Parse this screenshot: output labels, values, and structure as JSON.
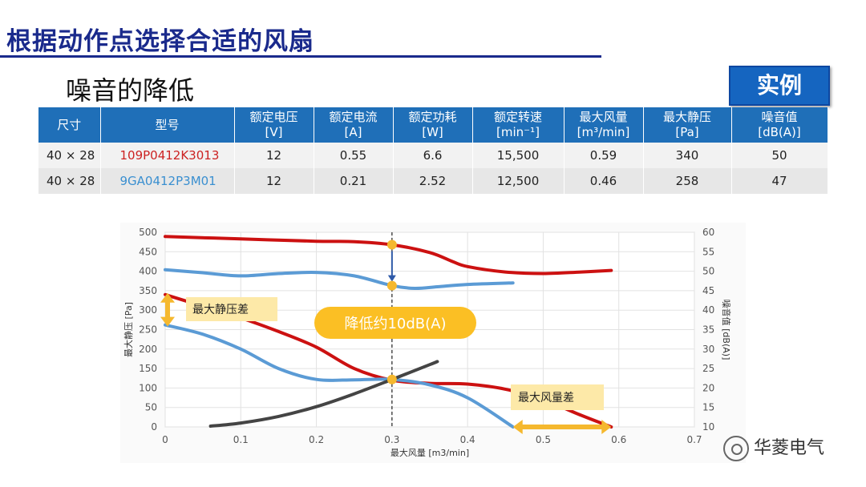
{
  "slide": {
    "title": "根据动作点选择合适的风扇",
    "subtitle": "噪音的降低",
    "badge": "实例"
  },
  "table": {
    "headers": [
      {
        "name": "尺寸",
        "unit": ""
      },
      {
        "name": "型号",
        "unit": ""
      },
      {
        "name": "额定电压",
        "unit": "[V]"
      },
      {
        "name": "额定电流",
        "unit": "[A]"
      },
      {
        "name": "额定功耗",
        "unit": "[W]"
      },
      {
        "name": "额定转速",
        "unit": "[min⁻¹]"
      },
      {
        "name": "最大风量",
        "unit": "[m³/min]"
      },
      {
        "name": "最大静压",
        "unit": "[Pa]"
      },
      {
        "name": "噪音值",
        "unit": "[dB(A)]"
      }
    ],
    "rows": [
      {
        "size": "40 × 28",
        "model": "109P0412K3013",
        "voltage": "12",
        "current": "0.55",
        "power": "6.6",
        "speed": "15,500",
        "airflow": "0.59",
        "pressure": "340",
        "noise": "50",
        "model_color": "#cc2222"
      },
      {
        "size": "40 × 28",
        "model": "9GA0412P3M01",
        "voltage": "12",
        "current": "0.21",
        "power": "2.52",
        "speed": "12,500",
        "airflow": "0.46",
        "pressure": "258",
        "noise": "47",
        "model_color": "#3a8fd0"
      }
    ]
  },
  "chart_data": {
    "type": "line",
    "xlabel": "最大风量 [m3/min]",
    "ylabel_left": "最大静压 [Pa]",
    "ylabel_right": "噪音值 [dB(A)]",
    "xlim": [
      0,
      0.7
    ],
    "ylim_left": [
      0,
      500
    ],
    "ylim_right": [
      10,
      60
    ],
    "x_ticks": [
      "0",
      "0.1",
      "0.2",
      "0.3",
      "0.4",
      "0.5",
      "0.6",
      "0.7"
    ],
    "y_ticks_left": [
      "0",
      "50",
      "100",
      "150",
      "200",
      "250",
      "300",
      "350",
      "400",
      "450",
      "500"
    ],
    "y_ticks_right": [
      "10",
      "15",
      "20",
      "25",
      "30",
      "35",
      "40",
      "45",
      "50",
      "55",
      "60"
    ],
    "grid": true,
    "series": [
      {
        "role": "pressure-old",
        "axis": "left",
        "color": "#cc1111",
        "points": [
          [
            0,
            340
          ],
          [
            0.05,
            310
          ],
          [
            0.1,
            280
          ],
          [
            0.15,
            245
          ],
          [
            0.2,
            205
          ],
          [
            0.25,
            150
          ],
          [
            0.3,
            120
          ],
          [
            0.35,
            112
          ],
          [
            0.4,
            110
          ],
          [
            0.45,
            97
          ],
          [
            0.5,
            70
          ],
          [
            0.55,
            30
          ],
          [
            0.59,
            0
          ]
        ]
      },
      {
        "role": "pressure-new",
        "axis": "left",
        "color": "#5b9bd5",
        "points": [
          [
            0,
            262
          ],
          [
            0.05,
            238
          ],
          [
            0.1,
            200
          ],
          [
            0.15,
            150
          ],
          [
            0.2,
            122
          ],
          [
            0.25,
            121
          ],
          [
            0.3,
            122
          ],
          [
            0.35,
            108
          ],
          [
            0.4,
            75
          ],
          [
            0.46,
            0
          ]
        ]
      },
      {
        "role": "noise-old",
        "axis": "right",
        "color": "#cc1111",
        "points": [
          [
            0,
            58.9
          ],
          [
            0.1,
            58.3
          ],
          [
            0.2,
            57.7
          ],
          [
            0.25,
            57.6
          ],
          [
            0.3,
            56.8
          ],
          [
            0.35,
            54.8
          ],
          [
            0.38,
            52.5
          ],
          [
            0.4,
            51.2
          ],
          [
            0.45,
            49.8
          ],
          [
            0.5,
            49.4
          ],
          [
            0.55,
            49.8
          ],
          [
            0.59,
            50.2
          ]
        ]
      },
      {
        "role": "noise-new",
        "axis": "right",
        "color": "#5b9bd5",
        "points": [
          [
            0,
            50.4
          ],
          [
            0.05,
            49.6
          ],
          [
            0.1,
            48.8
          ],
          [
            0.15,
            49.4
          ],
          [
            0.2,
            49.7
          ],
          [
            0.25,
            48.8
          ],
          [
            0.3,
            46.3
          ],
          [
            0.33,
            45.6
          ],
          [
            0.36,
            46.0
          ],
          [
            0.4,
            46.6
          ],
          [
            0.46,
            47.0
          ]
        ]
      },
      {
        "role": "system-impedance",
        "axis": "left",
        "color": "#444444",
        "points": [
          [
            0.06,
            2
          ],
          [
            0.1,
            10
          ],
          [
            0.15,
            27
          ],
          [
            0.2,
            52
          ],
          [
            0.25,
            85
          ],
          [
            0.3,
            122
          ],
          [
            0.35,
            160
          ],
          [
            0.36,
            168
          ]
        ]
      }
    ],
    "operating_point": {
      "x": 0.3,
      "pressure": 122,
      "noise_old": 56.8,
      "noise_new": 46.3
    },
    "annotations": {
      "pressure_diff": "最大静压差",
      "noise_reduction": "降低约10dB(A)",
      "airflow_diff": "最大风量差"
    },
    "colors": {
      "marker": "#f5b82e",
      "annotation_fill": "#fde9a8",
      "pill_fill": "#fbbf24",
      "arrow": "#2f5aa8"
    }
  },
  "watermark": {
    "text": "华菱电气"
  }
}
